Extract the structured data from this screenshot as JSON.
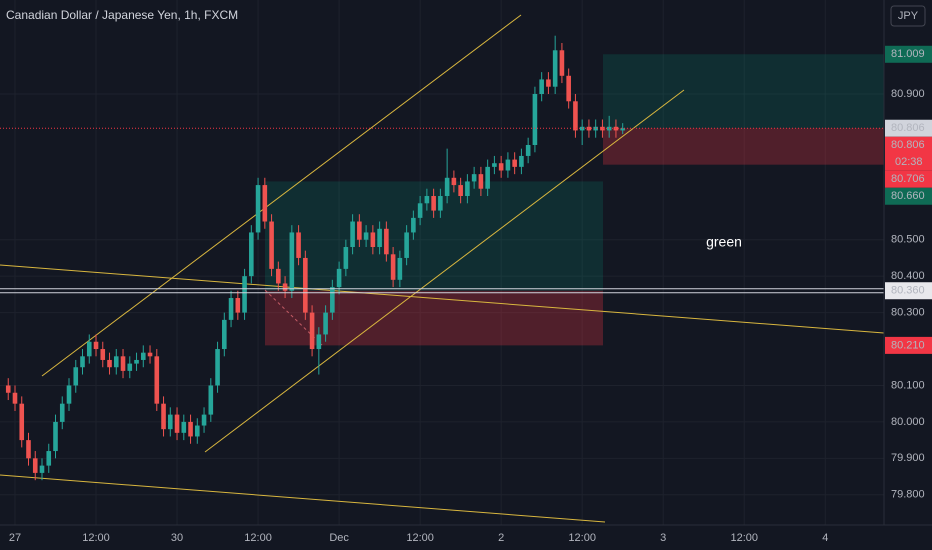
{
  "chart_data": {
    "type": "candlestick",
    "title": "Canadian Dollar / Japanese Yen, 1h, FXCM",
    "currency": "JPY",
    "annotation": "green",
    "countdown": "02:38",
    "up_color": "#26a69a",
    "down_color": "#ef5350",
    "grid": true,
    "xlim": [
      -1.22,
      129.7
    ],
    "ylim": [
      79.717,
      81.158
    ],
    "xticks": [
      {
        "value": 1,
        "label": "27"
      },
      {
        "value": 13,
        "label": "12:00"
      },
      {
        "value": 25,
        "label": "30"
      },
      {
        "value": 37,
        "label": "12:00"
      },
      {
        "value": 49,
        "label": "Dec"
      },
      {
        "value": 61,
        "label": "12:00"
      },
      {
        "value": 73,
        "label": "2"
      },
      {
        "value": 85,
        "label": "12:00"
      },
      {
        "value": 97,
        "label": "3"
      },
      {
        "value": 109,
        "label": "12:00"
      },
      {
        "value": 121,
        "label": "4"
      }
    ],
    "yticks": [
      {
        "value": 79.8,
        "label": "79.800"
      },
      {
        "value": 79.9,
        "label": "79.900"
      },
      {
        "value": 80.0,
        "label": "80.000"
      },
      {
        "value": 80.1,
        "label": "80.100"
      },
      {
        "value": 80.3,
        "label": "80.300"
      },
      {
        "value": 80.4,
        "label": "80.400"
      },
      {
        "value": 80.5,
        "label": "80.500"
      },
      {
        "value": 80.9,
        "label": "80.900"
      }
    ],
    "price_labels": [
      {
        "value": 81.009,
        "color": "#0f6b55"
      },
      {
        "value": 80.806,
        "color": "#d1d4dc"
      },
      {
        "value": 80.806,
        "color": "#f23645"
      },
      {
        "value": 80.706,
        "color": "#f23645"
      },
      {
        "value": 80.66,
        "label": "80.660",
        "color": "#0f6b55"
      },
      {
        "value": 80.36,
        "label": "80.360",
        "color": "#e8e8ec"
      },
      {
        "value": 80.21,
        "label": "80.210",
        "color": "#f23645"
      }
    ],
    "open": [
      80.1,
      80.08,
      80.05,
      79.95,
      79.9,
      79.86,
      79.88,
      79.92,
      80.0,
      80.05,
      80.1,
      80.15,
      80.18,
      80.22,
      80.2,
      80.17,
      80.15,
      80.18,
      80.14,
      80.16,
      80.17,
      80.19,
      80.18,
      80.05,
      79.98,
      80.02,
      79.97,
      80.0,
      79.96,
      79.99,
      80.02,
      80.1,
      80.2,
      80.28,
      80.34,
      80.3,
      80.4,
      80.52,
      80.65,
      80.55,
      80.42,
      80.38,
      80.36,
      80.52,
      80.45,
      80.3,
      80.2,
      80.24,
      80.3,
      80.37,
      80.42,
      80.48,
      80.55,
      80.5,
      80.52,
      80.48,
      80.53,
      80.46,
      80.39,
      80.45,
      80.52,
      80.56,
      80.6,
      80.62,
      80.58,
      80.62,
      80.67,
      80.65,
      80.62,
      80.66,
      80.68,
      80.64,
      80.7,
      80.71,
      80.69,
      80.72,
      80.7,
      80.73,
      80.76,
      80.9,
      80.94,
      80.92,
      81.02,
      80.95,
      80.88,
      80.8,
      80.81,
      80.8,
      80.81,
      80.8,
      80.81,
      80.8
    ],
    "high": [
      80.12,
      80.1,
      80.07,
      79.97,
      79.92,
      79.9,
      79.94,
      80.02,
      80.07,
      80.12,
      80.17,
      80.2,
      80.24,
      80.24,
      80.22,
      80.19,
      80.2,
      80.2,
      80.18,
      80.19,
      80.21,
      80.21,
      80.2,
      80.07,
      80.04,
      80.04,
      80.02,
      80.02,
      80.01,
      80.04,
      80.12,
      80.22,
      80.3,
      80.36,
      80.36,
      80.42,
      80.54,
      80.67,
      80.67,
      80.57,
      80.44,
      80.4,
      80.54,
      80.54,
      80.47,
      80.32,
      80.26,
      80.32,
      80.39,
      80.44,
      80.5,
      80.57,
      80.57,
      80.54,
      80.54,
      80.55,
      80.55,
      80.48,
      80.47,
      80.54,
      80.58,
      80.62,
      80.64,
      80.64,
      80.64,
      80.75,
      80.69,
      80.67,
      80.68,
      80.7,
      80.7,
      80.72,
      80.73,
      80.73,
      80.74,
      80.74,
      80.75,
      80.78,
      80.92,
      80.96,
      80.96,
      81.06,
      81.04,
      80.97,
      80.9,
      80.83,
      80.83,
      80.83,
      80.83,
      80.84,
      80.83,
      80.82
    ],
    "low": [
      80.06,
      80.03,
      79.93,
      79.88,
      79.84,
      79.84,
      79.86,
      79.9,
      79.98,
      80.03,
      80.08,
      80.13,
      80.16,
      80.18,
      80.15,
      80.13,
      80.13,
      80.12,
      80.12,
      80.14,
      80.15,
      80.16,
      80.03,
      79.96,
      79.96,
      79.95,
      79.95,
      79.94,
      79.94,
      79.97,
      80.0,
      80.08,
      80.18,
      80.26,
      80.28,
      80.28,
      80.38,
      80.5,
      80.53,
      80.4,
      80.36,
      80.34,
      80.34,
      80.43,
      80.28,
      80.18,
      80.13,
      80.22,
      80.28,
      80.35,
      80.4,
      80.46,
      80.48,
      80.48,
      80.46,
      80.46,
      80.44,
      80.37,
      80.37,
      80.43,
      80.5,
      80.54,
      80.58,
      80.56,
      80.56,
      80.6,
      80.63,
      80.6,
      80.6,
      80.64,
      80.62,
      80.62,
      80.68,
      80.67,
      80.67,
      80.68,
      80.68,
      80.71,
      80.74,
      80.88,
      80.9,
      80.9,
      80.93,
      80.86,
      80.78,
      80.76,
      80.78,
      80.78,
      80.78,
      80.78,
      80.78,
      80.79
    ],
    "close": [
      80.08,
      80.05,
      79.95,
      79.9,
      79.86,
      79.88,
      79.92,
      80.0,
      80.05,
      80.1,
      80.15,
      80.18,
      80.22,
      80.2,
      80.17,
      80.15,
      80.18,
      80.14,
      80.16,
      80.17,
      80.19,
      80.18,
      80.05,
      79.98,
      80.02,
      79.97,
      80.0,
      79.96,
      79.99,
      80.02,
      80.1,
      80.2,
      80.28,
      80.34,
      80.3,
      80.4,
      80.52,
      80.65,
      80.55,
      80.42,
      80.38,
      80.36,
      80.52,
      80.45,
      80.3,
      80.2,
      80.24,
      80.3,
      80.37,
      80.42,
      80.48,
      80.55,
      80.5,
      80.52,
      80.48,
      80.53,
      80.46,
      80.39,
      80.45,
      80.52,
      80.56,
      80.6,
      80.62,
      80.58,
      80.62,
      80.67,
      80.65,
      80.62,
      80.66,
      80.68,
      80.64,
      80.7,
      80.71,
      80.69,
      80.72,
      80.7,
      80.73,
      80.76,
      80.9,
      80.94,
      80.92,
      81.02,
      80.95,
      80.88,
      80.8,
      80.81,
      80.8,
      80.81,
      80.8,
      80.81,
      80.8,
      80.806
    ]
  }
}
